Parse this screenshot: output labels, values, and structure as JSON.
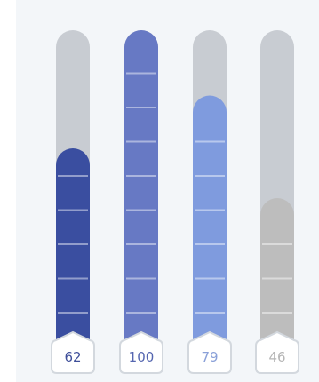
{
  "chart_data": {
    "type": "bar",
    "orientation": "vertical",
    "style": "thermometer-tubes",
    "title": "",
    "xlabel": "",
    "ylabel": "",
    "ylim": [
      0,
      100
    ],
    "grid": false,
    "legend": "none",
    "values": [
      62,
      100,
      79,
      46
    ],
    "value_labels": [
      "62",
      "100",
      "79",
      "46"
    ],
    "colors": [
      "#3a4ea0",
      "#6779c4",
      "#7f9bde",
      "#bdbdbd"
    ],
    "label_text_colors": [
      "#3f4f9a",
      "#5566b0",
      "#8aa0d8",
      "#b5b5b5"
    ],
    "track_color": "#c8ccd2",
    "panel_color": "#f3f6f9"
  }
}
